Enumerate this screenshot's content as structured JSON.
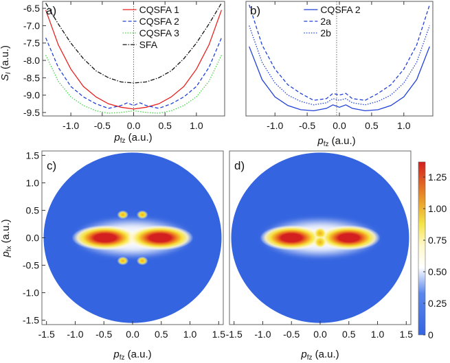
{
  "chart_data": [
    {
      "panel": "a)",
      "type": "line",
      "xlabel": "p_fz (a.u.)",
      "ylabel": "S_I (a.u.)",
      "xlim": [
        -1.45,
        1.45
      ],
      "ylim": [
        -9.6,
        -6.3
      ],
      "x_ticks": [
        "-1.0",
        "-0.5",
        "0.0",
        "0.5",
        "1.0"
      ],
      "y_ticks": [
        "-6.5",
        "-7.0",
        "-7.5",
        "-8.0",
        "-8.5",
        "-9.0",
        "-9.5"
      ],
      "legend_position": "top-right",
      "series": [
        {
          "name": "CQSFA 1",
          "color": "#e8201d",
          "dash": "solid",
          "x": [
            -1.4,
            -1.2,
            -1.0,
            -0.8,
            -0.6,
            -0.4,
            -0.2,
            0.0,
            0.2,
            0.4,
            0.6,
            0.8,
            1.0,
            1.2,
            1.4
          ],
          "y": [
            -6.55,
            -7.55,
            -8.25,
            -8.75,
            -9.05,
            -9.25,
            -9.35,
            -9.4,
            -9.35,
            -9.25,
            -9.05,
            -8.75,
            -8.25,
            -7.55,
            -6.55
          ]
        },
        {
          "name": "CQSFA 2",
          "color": "#1f3fd8",
          "dash": "dash",
          "x": [
            -1.4,
            -1.2,
            -1.0,
            -0.8,
            -0.6,
            -0.4,
            -0.2,
            -0.1,
            0.0,
            0.1,
            0.2,
            0.4,
            0.6,
            0.8,
            1.0,
            1.2,
            1.4
          ],
          "y": [
            -7.35,
            -8.2,
            -8.75,
            -9.05,
            -9.25,
            -9.38,
            -9.3,
            -9.22,
            -9.3,
            -9.22,
            -9.3,
            -9.38,
            -9.25,
            -9.05,
            -8.75,
            -8.2,
            -7.35
          ]
        },
        {
          "name": "CQSFA 3",
          "color": "#3fd63f",
          "dash": "dot",
          "x": [
            -1.4,
            -1.2,
            -1.0,
            -0.8,
            -0.6,
            -0.4,
            -0.2,
            0.0,
            0.2,
            0.4,
            0.6,
            0.8,
            1.0,
            1.2,
            1.4
          ],
          "y": [
            -7.85,
            -8.6,
            -9.05,
            -9.3,
            -9.45,
            -9.52,
            -9.5,
            -9.45,
            -9.5,
            -9.52,
            -9.45,
            -9.3,
            -9.05,
            -8.6,
            -7.85
          ]
        },
        {
          "name": "SFA",
          "color": "#111111",
          "dash": "dashdot",
          "x": [
            -1.4,
            -1.2,
            -1.0,
            -0.8,
            -0.6,
            -0.4,
            -0.2,
            0.0,
            0.2,
            0.4,
            0.6,
            0.8,
            1.0,
            1.2,
            1.4
          ],
          "y": [
            -6.35,
            -6.95,
            -7.5,
            -7.95,
            -8.3,
            -8.5,
            -8.62,
            -8.65,
            -8.62,
            -8.5,
            -8.3,
            -7.95,
            -7.5,
            -6.95,
            -6.35
          ]
        }
      ]
    },
    {
      "panel": "b)",
      "type": "line",
      "xlabel": "p_fz (a.u.)",
      "ylabel": "",
      "xlim": [
        -1.45,
        1.45
      ],
      "ylim": [
        -9.6,
        -6.3
      ],
      "x_ticks": [
        "-1.0",
        "-0.5",
        "0.0",
        "0.5",
        "1.0"
      ],
      "legend_position": "top-right",
      "series": [
        {
          "name": "CQSFA 2",
          "color": "#1f3fd8",
          "dash": "solid",
          "x": [
            -1.4,
            -1.2,
            -1.0,
            -0.8,
            -0.6,
            -0.4,
            -0.2,
            -0.1,
            0.0,
            0.1,
            0.2,
            0.4,
            0.6,
            0.8,
            1.0,
            1.2,
            1.4
          ],
          "y": [
            -7.6,
            -8.55,
            -9.05,
            -9.3,
            -9.42,
            -9.45,
            -9.38,
            -9.28,
            -9.35,
            -9.28,
            -9.38,
            -9.45,
            -9.42,
            -9.3,
            -9.05,
            -8.55,
            -7.6
          ]
        },
        {
          "name": "2a",
          "color": "#1f3fd8",
          "dash": "dash",
          "x": [
            -1.4,
            -1.2,
            -1.0,
            -0.8,
            -0.6,
            -0.4,
            -0.2,
            -0.1,
            0.0,
            0.1,
            0.2,
            0.4,
            0.6,
            0.8,
            1.0,
            1.2,
            1.4
          ],
          "y": [
            -6.4,
            -7.55,
            -8.25,
            -8.7,
            -8.95,
            -9.15,
            -9.1,
            -8.95,
            -9.0,
            -8.95,
            -9.1,
            -9.15,
            -8.95,
            -8.7,
            -8.25,
            -7.55,
            -6.4
          ]
        },
        {
          "name": "2b",
          "color": "#1f3fd8",
          "dash": "dot",
          "x": [
            -1.4,
            -1.2,
            -1.0,
            -0.8,
            -0.6,
            -0.4,
            -0.2,
            -0.1,
            0.0,
            0.1,
            0.2,
            0.4,
            0.6,
            0.8,
            1.0,
            1.2,
            1.4
          ],
          "y": [
            -7.0,
            -8.05,
            -8.65,
            -9.0,
            -9.18,
            -9.28,
            -9.22,
            -9.1,
            -9.15,
            -9.1,
            -9.22,
            -9.28,
            -9.18,
            -9.0,
            -8.65,
            -8.05,
            -7.0
          ]
        }
      ]
    },
    {
      "panel": "c)",
      "type": "heatmap",
      "xlabel": "p_fz (a.u.)",
      "ylabel": "p_fx (a.u.)",
      "xlim": [
        -1.58,
        1.58
      ],
      "ylim": [
        -1.58,
        1.58
      ],
      "x_ticks": [
        "-1.5",
        "-1.0",
        "-0.5",
        "0.0",
        "0.5",
        "1.0",
        "1.5"
      ],
      "y_ticks": [
        "1.5",
        "1.0",
        "0.5",
        "0.0",
        "-0.5",
        "-1.0",
        "-1.5"
      ],
      "domain_radius": 1.55,
      "blobs": [
        {
          "x": -0.48,
          "y": 0.0,
          "peak": 1.35
        },
        {
          "x": 0.48,
          "y": 0.0,
          "peak": 1.35
        },
        {
          "x": -0.17,
          "y": 0.42,
          "peak": 0.9
        },
        {
          "x": 0.17,
          "y": 0.42,
          "peak": 0.9
        },
        {
          "x": -0.17,
          "y": -0.42,
          "peak": 0.9
        },
        {
          "x": 0.17,
          "y": -0.42,
          "peak": 0.9
        }
      ]
    },
    {
      "panel": "d)",
      "type": "heatmap",
      "xlabel": "p_fz (a.u.)",
      "ylabel": "",
      "xlim": [
        -1.58,
        1.58
      ],
      "ylim": [
        -1.58,
        1.58
      ],
      "x_ticks": [
        "-1.5",
        "-1.0",
        "-0.5",
        "0.0",
        "0.5",
        "1.0",
        "1.5"
      ],
      "domain_radius": 1.55,
      "blobs": [
        {
          "x": -0.5,
          "y": 0.0,
          "peak": 1.35
        },
        {
          "x": 0.5,
          "y": 0.0,
          "peak": 1.35
        },
        {
          "x": 0.0,
          "y": 0.08,
          "peak": 1.05
        },
        {
          "x": 0.0,
          "y": -0.08,
          "peak": 1.05
        }
      ]
    }
  ],
  "colorbar": {
    "min": 0,
    "max": 1.37,
    "ticks": [
      "1.25",
      "1.00",
      "0.75",
      "0.50",
      "0.25",
      "0"
    ],
    "tick_values": [
      1.25,
      1.0,
      0.75,
      0.5,
      0.25,
      0
    ],
    "colors": [
      "#3464e0",
      "#ffffff",
      "#f7e634",
      "#d31f1f"
    ]
  }
}
